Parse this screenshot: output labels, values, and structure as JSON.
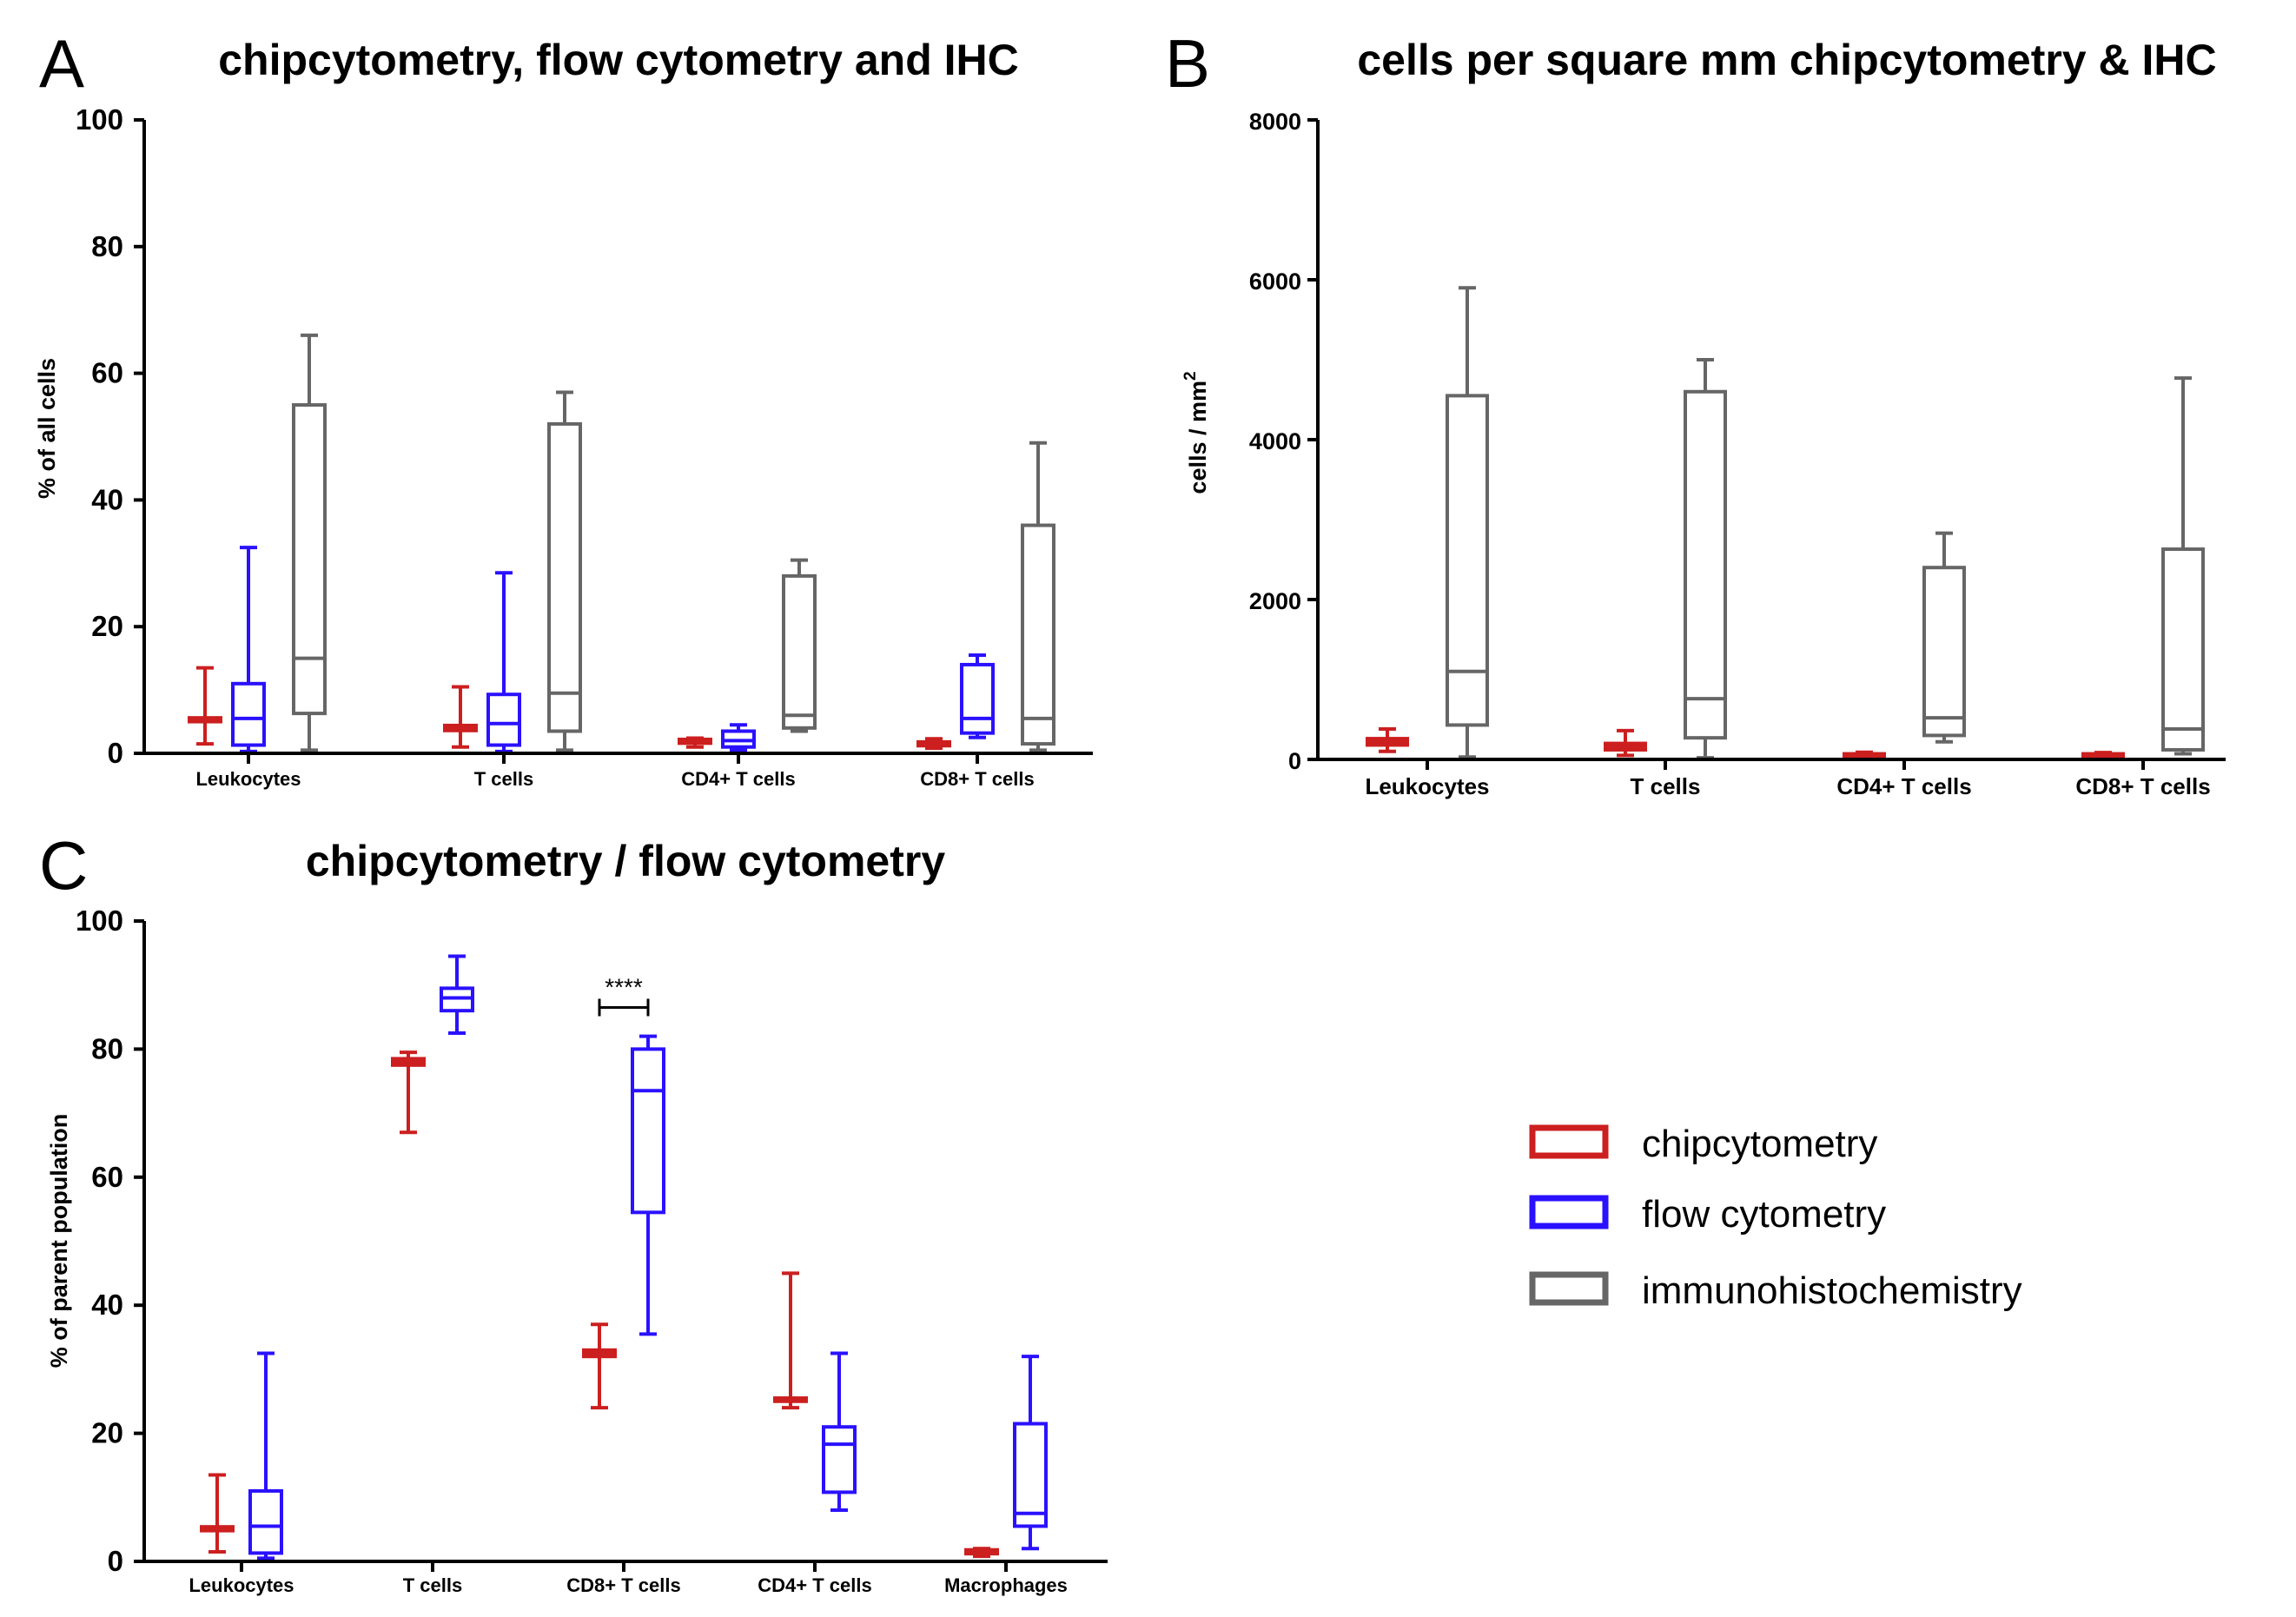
{
  "colors": {
    "chipcytometry": "#cc1f1f",
    "flow cytometry": "#2a11ff",
    "immunohistochemistry": "#666666",
    "axis": "#000000"
  },
  "legend": [
    {
      "name": "chipcytometry",
      "color": "#cc1f1f"
    },
    {
      "name": "flow cytometry",
      "color": "#2a11ff"
    },
    {
      "name": "immunohistochemistry",
      "color": "#666666"
    }
  ],
  "chart_data": [
    {
      "id": "A",
      "panel_letter": "A",
      "type": "boxplot",
      "title": "chipcytometry, flow cytometry and IHC",
      "xlabel": "",
      "ylabel": "% of all cells",
      "ylim": [
        0,
        100
      ],
      "yticks": [
        0,
        20,
        40,
        60,
        80,
        100
      ],
      "categories": [
        "Leukocytes",
        "T cells",
        "CD4+ T cells",
        "CD8+ T cells"
      ],
      "series": [
        {
          "name": "chipcytometry",
          "boxes": [
            {
              "min": 1.5,
              "q1": 5,
              "median": 5.3,
              "q3": 5.6,
              "max": 13.5
            },
            {
              "min": 1,
              "q1": 3.6,
              "median": 4,
              "q3": 4.4,
              "max": 10.5
            },
            {
              "min": 1,
              "q1": 1.6,
              "median": 1.9,
              "q3": 2.2,
              "max": 2.4
            },
            {
              "min": 0.8,
              "q1": 1.2,
              "median": 1.5,
              "q3": 1.8,
              "max": 2.3
            }
          ]
        },
        {
          "name": "flow cytometry",
          "boxes": [
            {
              "min": 0.3,
              "q1": 1.3,
              "median": 5.5,
              "q3": 11,
              "max": 32.5
            },
            {
              "min": 0.3,
              "q1": 1.3,
              "median": 4.7,
              "q3": 9.3,
              "max": 28.5
            },
            {
              "min": 0.5,
              "q1": 1,
              "median": 2,
              "q3": 3.5,
              "max": 4.5
            },
            {
              "min": 2.5,
              "q1": 3.2,
              "median": 5.5,
              "q3": 14,
              "max": 15.5
            }
          ]
        },
        {
          "name": "immunohistochemistry",
          "boxes": [
            {
              "min": 0.5,
              "q1": 6.3,
              "median": 15,
              "q3": 55,
              "max": 66
            },
            {
              "min": 0.5,
              "q1": 3.5,
              "median": 9.5,
              "q3": 52,
              "max": 57
            },
            {
              "min": 3.5,
              "q1": 4,
              "median": 6,
              "q3": 28,
              "max": 30.5
            },
            {
              "min": 0.5,
              "q1": 1.5,
              "median": 5.5,
              "q3": 36,
              "max": 49
            }
          ]
        }
      ]
    },
    {
      "id": "B",
      "panel_letter": "B",
      "type": "boxplot",
      "title": "cells per square mm chipcytometry & IHC",
      "xlabel": "",
      "ylabel": "cells / mm",
      "ylabel_superscript": "2",
      "ylim": [
        0,
        8000
      ],
      "yticks": [
        0,
        2000,
        4000,
        6000,
        8000
      ],
      "categories": [
        "Leukocytes",
        "T cells",
        "CD4+ T cells",
        "CD8+ T cells"
      ],
      "series": [
        {
          "name": "chipcytometry",
          "boxes": [
            {
              "min": 100,
              "q1": 180,
              "median": 220,
              "q3": 260,
              "max": 380
            },
            {
              "min": 50,
              "q1": 120,
              "median": 160,
              "q3": 200,
              "max": 360
            },
            {
              "min": 20,
              "q1": 40,
              "median": 55,
              "q3": 70,
              "max": 90
            },
            {
              "min": 20,
              "q1": 40,
              "median": 55,
              "q3": 70,
              "max": 85
            }
          ]
        },
        {
          "name": "immunohistochemistry",
          "boxes": [
            {
              "min": 30,
              "q1": 430,
              "median": 1100,
              "q3": 4550,
              "max": 5900
            },
            {
              "min": 20,
              "q1": 270,
              "median": 760,
              "q3": 4600,
              "max": 5000
            },
            {
              "min": 220,
              "q1": 300,
              "median": 520,
              "q3": 2400,
              "max": 2830
            },
            {
              "min": 70,
              "q1": 120,
              "median": 380,
              "q3": 2630,
              "max": 4770
            }
          ]
        }
      ]
    },
    {
      "id": "C",
      "panel_letter": "C",
      "type": "boxplot",
      "title": "chipcytometry / flow cytometry",
      "xlabel": "",
      "ylabel": "% of parent population",
      "ylim": [
        0,
        100
      ],
      "yticks": [
        0,
        20,
        40,
        60,
        80,
        100
      ],
      "categories": [
        "Leukocytes",
        "T cells",
        "CD8+ T cells",
        "CD4+ T cells",
        "Macrophages"
      ],
      "series": [
        {
          "name": "chipcytometry",
          "boxes": [
            {
              "min": 1.5,
              "q1": 4.8,
              "median": 5,
              "q3": 5.4,
              "max": 13.5
            },
            {
              "min": 67,
              "q1": 77.5,
              "median": 78,
              "q3": 78.5,
              "max": 79.5
            },
            {
              "min": 24,
              "q1": 32,
              "median": 32.5,
              "q3": 33,
              "max": 37
            },
            {
              "min": 24,
              "q1": 25,
              "median": 25.2,
              "q3": 25.5,
              "max": 45
            },
            {
              "min": 0.8,
              "q1": 1.2,
              "median": 1.5,
              "q3": 1.8,
              "max": 2
            }
          ]
        },
        {
          "name": "flow cytometry",
          "boxes": [
            {
              "min": 0.5,
              "q1": 1.3,
              "median": 5.5,
              "q3": 11,
              "max": 32.5
            },
            {
              "min": 82.5,
              "q1": 86,
              "median": 88,
              "q3": 89.5,
              "max": 94.5
            },
            {
              "min": 35.5,
              "q1": 54.5,
              "median": 73.5,
              "q3": 80,
              "max": 82
            },
            {
              "min": 8,
              "q1": 10.8,
              "median": 18.3,
              "q3": 21,
              "max": 32.5
            },
            {
              "min": 2,
              "q1": 5.5,
              "median": 7.5,
              "q3": 21.5,
              "max": 32
            }
          ]
        }
      ],
      "annotations": [
        {
          "text": "****",
          "category": "CD8+ T cells",
          "y": 86.5
        }
      ]
    }
  ]
}
